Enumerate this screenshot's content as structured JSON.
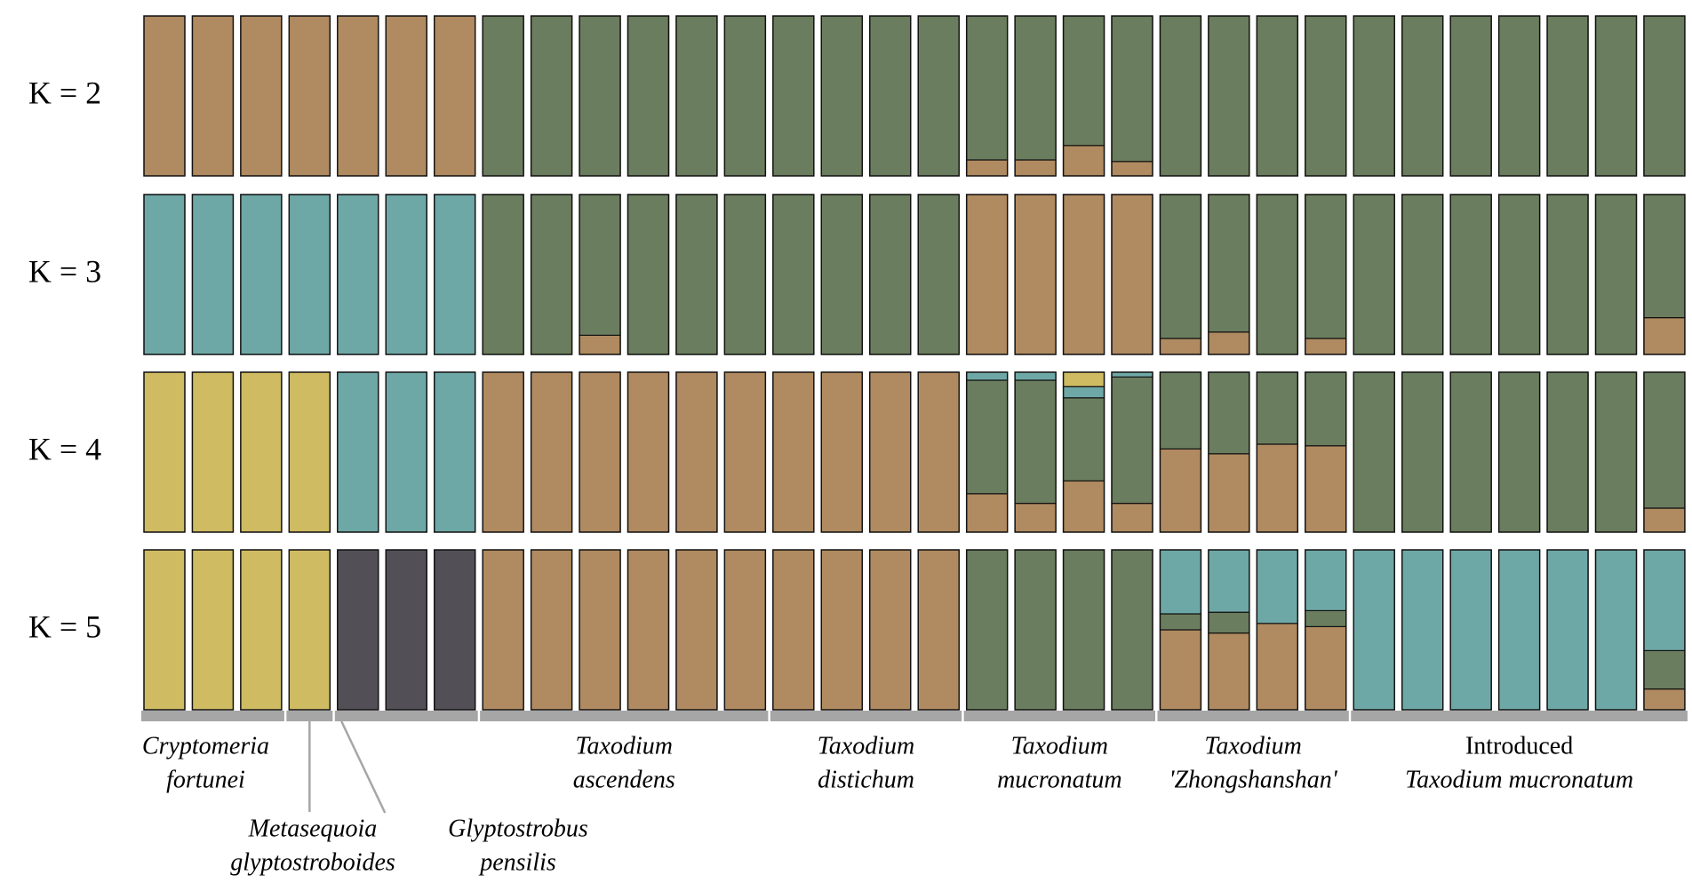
{
  "chart_data": [
    {
      "type": "bar",
      "stacked": true,
      "title": "K = 2",
      "ylim": [
        0,
        1
      ],
      "series": [
        {
          "color": "#b08a60",
          "values": [
            1,
            1,
            1,
            1,
            1,
            1,
            1,
            0,
            0,
            0,
            0,
            0,
            0,
            0,
            0,
            0,
            0,
            0.1,
            0.1,
            0.19,
            0.09,
            0,
            0,
            0,
            0,
            0,
            0,
            0,
            0,
            0,
            0,
            0
          ]
        },
        {
          "color": "#6a7d5e",
          "values": [
            0,
            0,
            0,
            0,
            0,
            0,
            0,
            1,
            1,
            1,
            1,
            1,
            1,
            1,
            1,
            1,
            1,
            0.9,
            0.9,
            0.81,
            0.91,
            1,
            1,
            1,
            1,
            1,
            1,
            1,
            1,
            1,
            1,
            1
          ]
        }
      ]
    },
    {
      "type": "bar",
      "stacked": true,
      "title": "K = 3",
      "ylim": [
        0,
        1
      ],
      "series": [
        {
          "color": "#b08a60",
          "values": [
            0,
            0,
            0,
            0,
            0,
            0,
            0,
            0,
            0,
            0.12,
            0,
            0,
            0,
            0,
            0,
            0,
            0,
            1,
            1,
            1,
            1,
            0.1,
            0.14,
            0,
            0.1,
            0,
            0,
            0,
            0,
            0,
            0,
            0.23
          ]
        },
        {
          "color": "#6a7d5e",
          "values": [
            0,
            0,
            0,
            0,
            0,
            0,
            0,
            1,
            1,
            0.88,
            1,
            1,
            1,
            1,
            1,
            1,
            1,
            0,
            0,
            0,
            0,
            0.9,
            0.86,
            1,
            0.9,
            1,
            1,
            1,
            1,
            1,
            1,
            0.77
          ]
        },
        {
          "color": "#6ea8a6",
          "values": [
            1,
            1,
            1,
            1,
            1,
            1,
            1,
            0,
            0,
            0,
            0,
            0,
            0,
            0,
            0,
            0,
            0,
            0,
            0,
            0,
            0,
            0,
            0,
            0,
            0,
            0,
            0,
            0,
            0,
            0,
            0,
            0
          ]
        }
      ]
    },
    {
      "type": "bar",
      "stacked": true,
      "title": "K = 4",
      "ylim": [
        0,
        1
      ],
      "series": [
        {
          "color": "#b08a60",
          "values": [
            0,
            0,
            0,
            0,
            0,
            0,
            0,
            1,
            1,
            1,
            1,
            1,
            1,
            1,
            1,
            1,
            1,
            0.24,
            0.18,
            0.32,
            0.18,
            0.52,
            0.49,
            0.55,
            0.54,
            0,
            0,
            0,
            0,
            0,
            0,
            0.15
          ]
        },
        {
          "color": "#6a7d5e",
          "values": [
            0,
            0,
            0,
            0,
            0,
            0,
            0,
            0,
            0,
            0,
            0,
            0,
            0,
            0,
            0,
            0,
            0,
            0.71,
            0.77,
            0.52,
            0.79,
            0.48,
            0.51,
            0.45,
            0.46,
            1,
            1,
            1,
            1,
            1,
            1,
            0.85
          ]
        },
        {
          "color": "#6ea8a6",
          "values": [
            0,
            0,
            0,
            0,
            1,
            1,
            1,
            0,
            0,
            0,
            0,
            0,
            0,
            0,
            0,
            0,
            0,
            0.05,
            0.05,
            0.07,
            0.03,
            0,
            0,
            0,
            0,
            0,
            0,
            0,
            0,
            0,
            0,
            0
          ]
        },
        {
          "color": "#cfbb62",
          "values": [
            1,
            1,
            1,
            1,
            0,
            0,
            0,
            0,
            0,
            0,
            0,
            0,
            0,
            0,
            0,
            0,
            0,
            0,
            0,
            0.09,
            0,
            0,
            0,
            0,
            0,
            0,
            0,
            0,
            0,
            0,
            0,
            0
          ]
        }
      ]
    },
    {
      "type": "bar",
      "stacked": true,
      "title": "K = 5",
      "ylim": [
        0,
        1
      ],
      "series": [
        {
          "color": "#b08a60",
          "values": [
            0,
            0,
            0,
            0,
            0,
            0,
            0,
            1,
            1,
            1,
            1,
            1,
            1,
            1,
            1,
            1,
            1,
            0,
            0,
            0,
            0,
            0.5,
            0.48,
            0.54,
            0.52,
            0,
            0,
            0,
            0,
            0,
            0,
            0.13
          ]
        },
        {
          "color": "#6a7d5e",
          "values": [
            0,
            0,
            0,
            0,
            0,
            0,
            0,
            0,
            0,
            0,
            0,
            0,
            0,
            0,
            0,
            0,
            0,
            1,
            1,
            1,
            1,
            0.1,
            0.13,
            0,
            0.1,
            0,
            0,
            0,
            0,
            0,
            0,
            0.24
          ]
        },
        {
          "color": "#6ea8a6",
          "values": [
            0,
            0,
            0,
            0,
            0,
            0,
            0,
            0,
            0,
            0,
            0,
            0,
            0,
            0,
            0,
            0,
            0,
            0,
            0,
            0,
            0,
            0.4,
            0.39,
            0.46,
            0.38,
            1,
            1,
            1,
            1,
            1,
            1,
            0.63
          ]
        },
        {
          "color": "#cfbb62",
          "values": [
            1,
            1,
            1,
            1,
            0,
            0,
            0,
            0,
            0,
            0,
            0,
            0,
            0,
            0,
            0,
            0,
            0,
            0,
            0,
            0,
            0,
            0,
            0,
            0,
            0,
            0,
            0,
            0,
            0,
            0,
            0,
            0
          ]
        },
        {
          "color": "#524f56",
          "values": [
            0,
            0,
            0,
            0,
            1,
            1,
            1,
            0,
            0,
            0,
            0,
            0,
            0,
            0,
            0,
            0,
            0,
            0,
            0,
            0,
            0,
            0,
            0,
            0,
            0,
            0,
            0,
            0,
            0,
            0,
            0,
            0
          ]
        }
      ]
    }
  ],
  "groups": [
    {
      "lines": [
        "Cryptomeria",
        "fortunei"
      ]
    },
    {
      "lines": [
        "Metasequoia",
        "glyptostroboides"
      ]
    },
    {
      "lines": [
        "Glyptostrobus",
        "pensilis"
      ]
    },
    {
      "lines": [
        "Taxodium",
        "ascendens"
      ]
    },
    {
      "lines": [
        "Taxodium",
        "distichum"
      ]
    },
    {
      "lines": [
        "Taxodium",
        "mucronatum"
      ]
    },
    {
      "lines": [
        "Taxodium",
        "'Zhongshanshan'"
      ]
    },
    {
      "lines": [
        "Introduced",
        "Taxodium mucronatum"
      ]
    }
  ]
}
